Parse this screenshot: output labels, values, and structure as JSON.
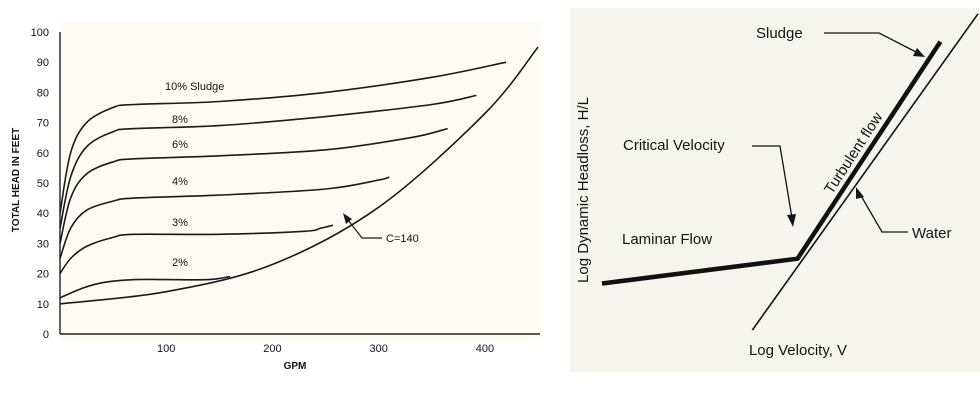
{
  "chart_data": [
    {
      "type": "line",
      "xlabel": "GPM",
      "ylabel": "TOTAL HEAD IN FEET",
      "xlim": [
        0,
        450
      ],
      "ylim": [
        0,
        100
      ],
      "x_ticks": [
        100,
        200,
        300,
        400
      ],
      "y_ticks": [
        0,
        10,
        20,
        30,
        40,
        50,
        60,
        70,
        80,
        90,
        100
      ],
      "grid": false,
      "background": "#fdfbf4",
      "series": [
        {
          "name": "10% Sludge",
          "x": [
            0,
            10,
            25,
            50,
            70,
            150,
            250,
            350,
            420
          ],
          "y": [
            40,
            60,
            70,
            75,
            76,
            77,
            80,
            85,
            90
          ]
        },
        {
          "name": "8%",
          "x": [
            0,
            10,
            25,
            50,
            70,
            150,
            250,
            350,
            392
          ],
          "y": [
            35,
            52,
            62,
            67,
            68,
            69,
            72,
            76,
            79
          ]
        },
        {
          "name": "6%",
          "x": [
            0,
            10,
            25,
            50,
            70,
            150,
            250,
            330,
            365
          ],
          "y": [
            30,
            45,
            53,
            57,
            58,
            59,
            61,
            65,
            68
          ]
        },
        {
          "name": "4%",
          "x": [
            0,
            10,
            25,
            50,
            70,
            150,
            250,
            300,
            310
          ],
          "y": [
            25,
            35,
            41,
            44,
            45,
            46,
            48,
            51,
            52
          ]
        },
        {
          "name": "3%",
          "x": [
            0,
            10,
            25,
            50,
            70,
            150,
            230,
            245,
            257
          ],
          "y": [
            20,
            25,
            29,
            32,
            33,
            33,
            34,
            35,
            36
          ]
        },
        {
          "name": "2%",
          "x": [
            0,
            20,
            40,
            70,
            100,
            140,
            160
          ],
          "y": [
            12,
            15,
            17,
            18,
            18,
            18,
            19
          ]
        },
        {
          "name": "C=140",
          "x": [
            0,
            100,
            200,
            300,
            400,
            450
          ],
          "y": [
            10,
            14,
            23,
            42,
            73,
            95
          ]
        }
      ],
      "annotations": [
        {
          "text": "C=140",
          "target": "C=140"
        }
      ]
    },
    {
      "type": "line",
      "xlabel": "Log Velocity, V",
      "ylabel": "Log Dynamic Headloss, H/L",
      "background": "#f5f4ef",
      "series": [
        {
          "name": "Sludge",
          "x": [
            0,
            0.52,
            0.9
          ],
          "y": [
            0.15,
            0.23,
            0.93
          ]
        },
        {
          "name": "Water",
          "x": [
            0.4,
            1.0
          ],
          "y": [
            0,
            1.02
          ]
        }
      ],
      "annotations": [
        {
          "text": "Sludge",
          "target": "Sludge"
        },
        {
          "text": "Turbulent flow",
          "target": "Sludge"
        },
        {
          "text": "Critical Velocity",
          "target": "Sludge"
        },
        {
          "text": "Laminar Flow",
          "target": "Sludge"
        },
        {
          "text": "Water",
          "target": "Water"
        }
      ]
    }
  ]
}
